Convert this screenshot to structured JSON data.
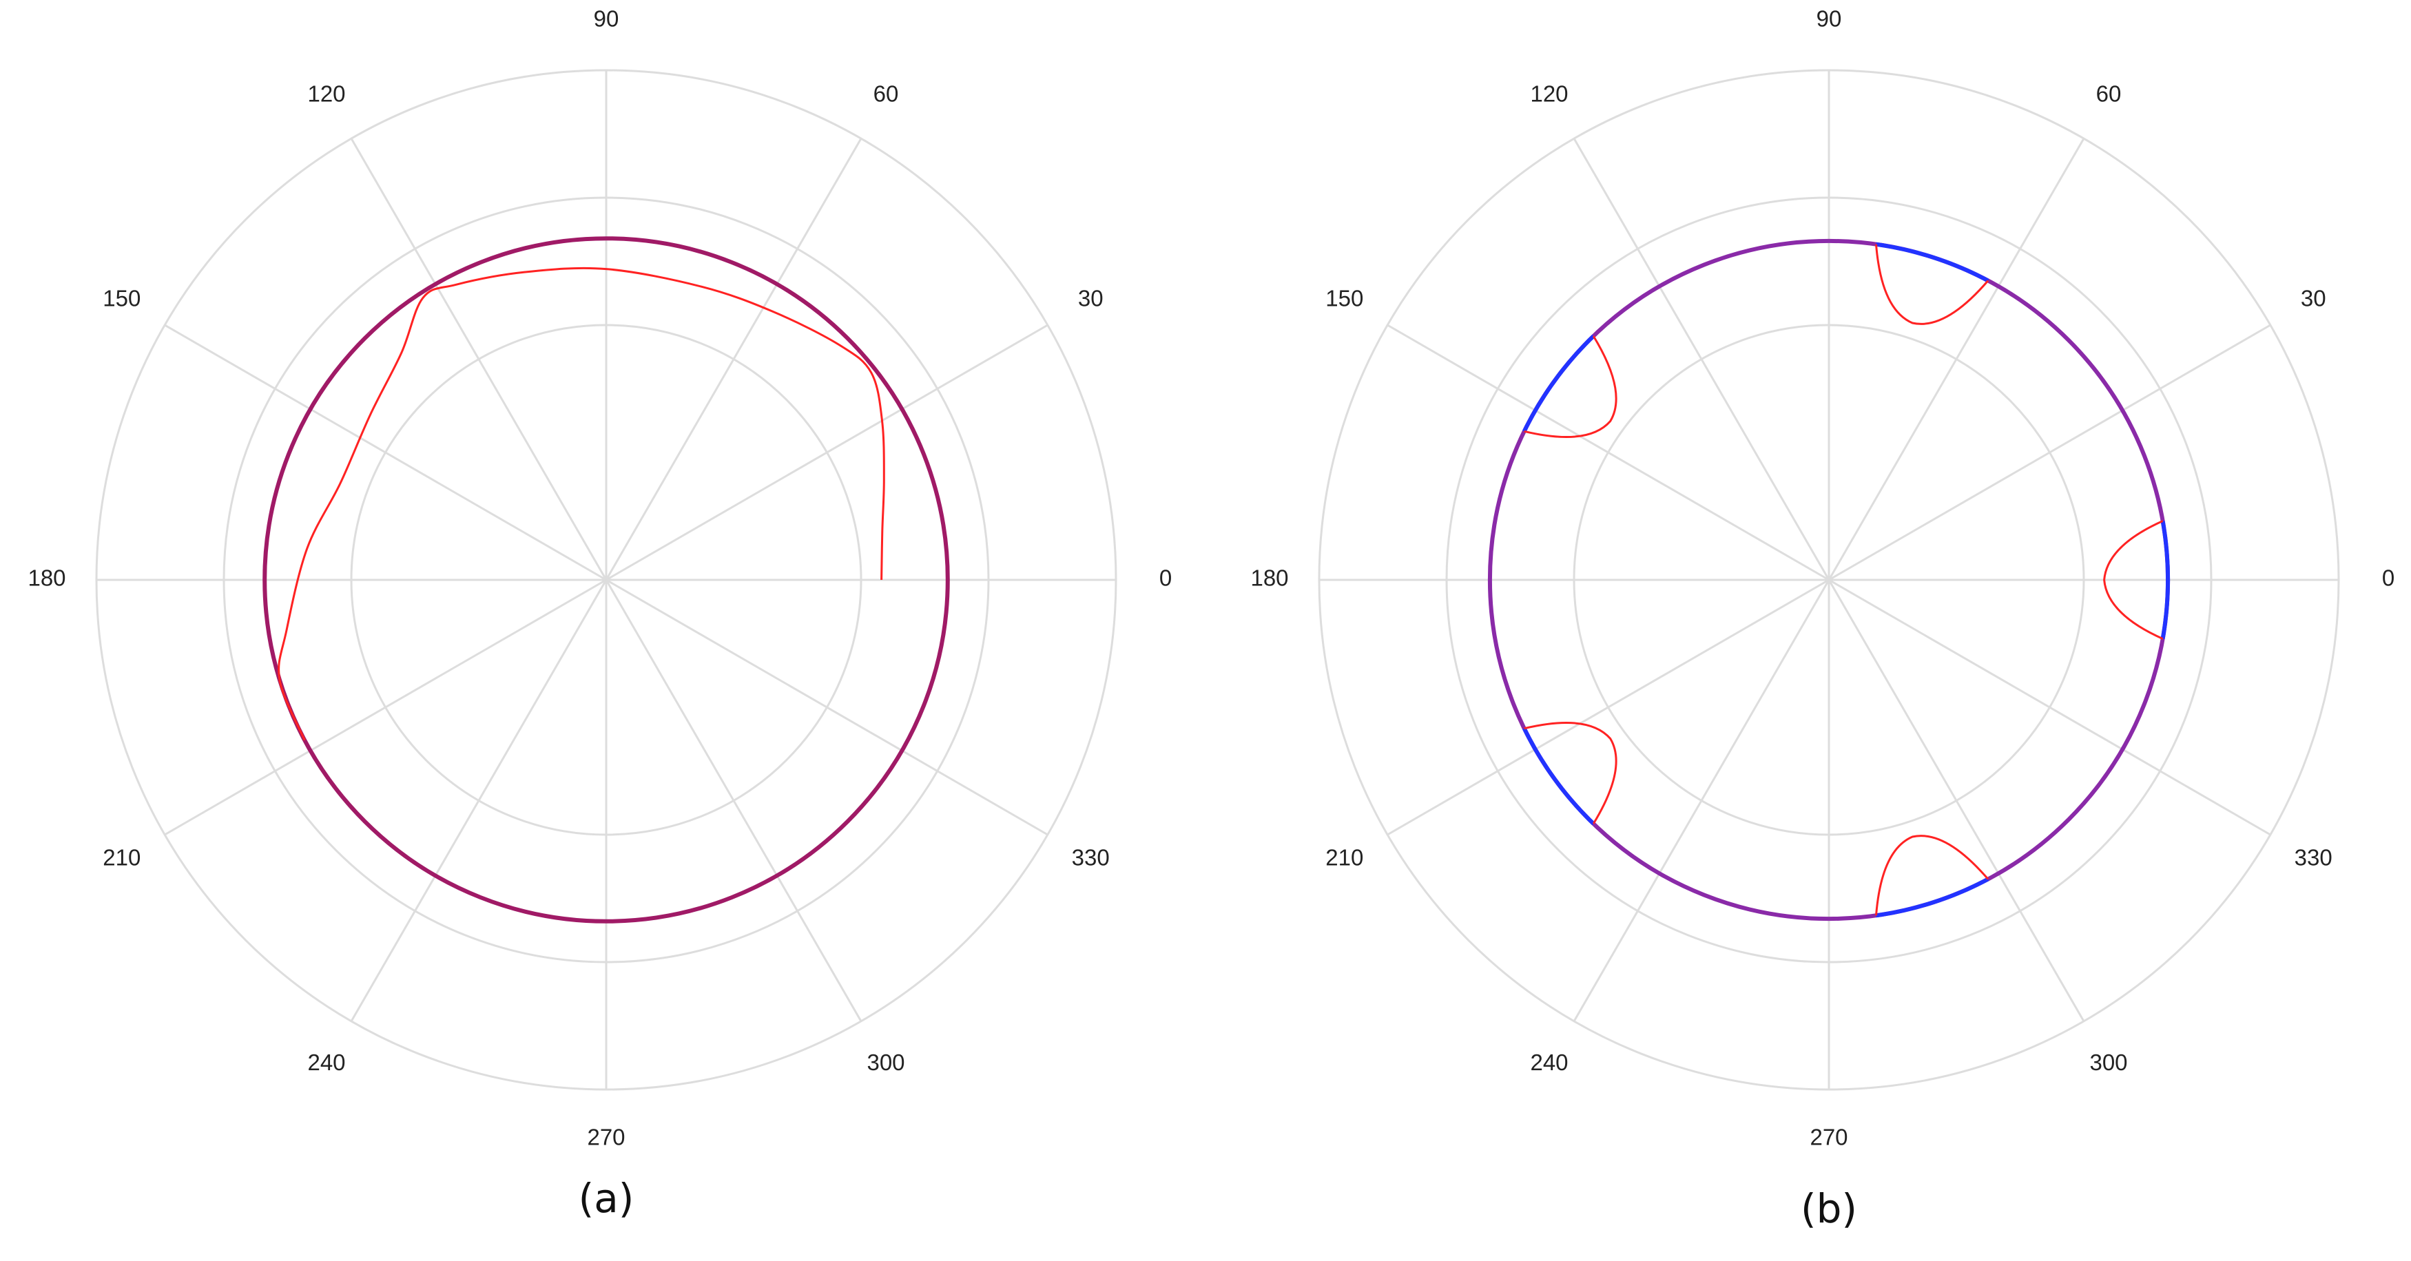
{
  "chart_data": [
    {
      "type": "polar-line",
      "panel_label": "(a)",
      "theta_ticks": [
        "0",
        "30",
        "60",
        "90",
        "120",
        "150",
        "180",
        "210",
        "240",
        "270",
        "300",
        "330"
      ],
      "theta_tick_values": [
        0,
        30,
        60,
        90,
        120,
        150,
        180,
        210,
        240,
        270,
        300,
        330
      ],
      "r_grid": [
        1,
        1.5,
        2
      ],
      "rlim": [
        0,
        2
      ],
      "grid": true,
      "radial_labels_shown": false,
      "series": [
        {
          "color": "#a01a66",
          "style": "circle",
          "r": 1.34,
          "theta": [
            0,
            360
          ]
        },
        {
          "color": "#ff2222",
          "style": "line",
          "points": [
            {
              "theta": 0,
              "r": 1.08
            },
            {
              "theta": 10,
              "r": 1.1
            },
            {
              "theta": 20,
              "r": 1.16
            },
            {
              "theta": 30,
              "r": 1.25
            },
            {
              "theta": 38,
              "r": 1.32
            },
            {
              "theta": 45,
              "r": 1.3
            },
            {
              "theta": 58,
              "r": 1.24
            },
            {
              "theta": 72,
              "r": 1.21
            },
            {
              "theta": 90,
              "r": 1.22
            },
            {
              "theta": 105,
              "r": 1.25
            },
            {
              "theta": 117,
              "r": 1.3
            },
            {
              "theta": 123,
              "r": 1.32
            },
            {
              "theta": 132,
              "r": 1.2
            },
            {
              "theta": 145,
              "r": 1.13
            },
            {
              "theta": 160,
              "r": 1.11
            },
            {
              "theta": 174,
              "r": 1.18
            },
            {
              "theta": 189,
              "r": 1.27
            },
            {
              "theta": 197,
              "r": 1.34
            },
            {
              "theta": 208,
              "r": 1.34
            }
          ]
        }
      ]
    },
    {
      "type": "polar-line",
      "panel_label": "(b)",
      "theta_ticks": [
        "0",
        "30",
        "60",
        "90",
        "120",
        "150",
        "180",
        "210",
        "240",
        "270",
        "300",
        "330"
      ],
      "theta_tick_values": [
        0,
        30,
        60,
        90,
        120,
        150,
        180,
        210,
        240,
        270,
        300,
        330
      ],
      "r_grid": [
        1,
        1.5,
        2
      ],
      "rlim": [
        0,
        2
      ],
      "grid": true,
      "radial_labels_shown": false,
      "series": [
        {
          "color": "#8a2aa8",
          "style": "circle",
          "r": 1.33,
          "theta": [
            0,
            360
          ]
        },
        {
          "color": "#2233ff",
          "style": "arcs",
          "r": 1.33,
          "segments": [
            [
              -10,
              10
            ],
            [
              62,
              82
            ],
            [
              134,
              154
            ],
            [
              206,
              226
            ],
            [
              278,
              298
            ]
          ]
        },
        {
          "color": "#ff2222",
          "style": "lobes",
          "lobes": [
            {
              "from_theta": -10,
              "to_theta": 10,
              "dip_r": 1.08
            },
            {
              "from_theta": 82,
              "to_theta": 62,
              "dip_r": 1.06
            },
            {
              "from_theta": 134,
              "to_theta": 154,
              "dip_r": 1.06
            },
            {
              "from_theta": 206,
              "to_theta": 226,
              "dip_r": 1.06
            },
            {
              "from_theta": 298,
              "to_theta": 278,
              "dip_r": 1.06
            }
          ]
        }
      ]
    }
  ]
}
